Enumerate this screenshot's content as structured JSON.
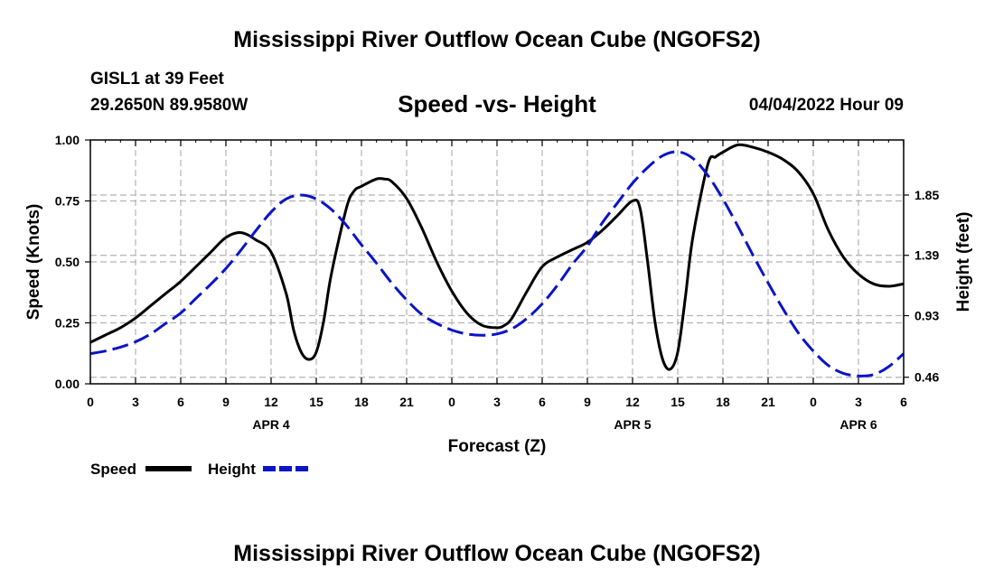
{
  "header": {
    "title": "Mississippi River Outflow Ocean Cube (NGOFS2)",
    "station": "GISL1 at 39 Feet",
    "coordinates": "29.2650N  89.9580W",
    "subtitle": "Speed -vs- Height",
    "datetime": "04/04/2022 Hour 09"
  },
  "footer": {
    "title": "Mississippi River Outflow Ocean Cube (NGOFS2)"
  },
  "chart_data": {
    "type": "line",
    "title": "Speed -vs- Height",
    "xlabel": "Forecast (Z)",
    "ylabel": "Speed (Knots)",
    "y2label": "Height (feet)",
    "x_range_hours": [
      0,
      54
    ],
    "x_tick_hours": [
      0,
      3,
      6,
      9,
      12,
      15,
      18,
      21,
      24,
      27,
      30,
      33,
      36,
      39,
      42,
      45,
      48,
      51,
      54
    ],
    "x_tick_labels": [
      "0",
      "3",
      "6",
      "9",
      "12",
      "15",
      "18",
      "21",
      "0",
      "3",
      "6",
      "9",
      "12",
      "15",
      "18",
      "21",
      "0",
      "3",
      "6"
    ],
    "date_labels": [
      {
        "label": "APR 4",
        "hour": 12
      },
      {
        "label": "APR 5",
        "hour": 36
      },
      {
        "label": "APR 6",
        "hour": 51
      }
    ],
    "ylim": [
      0,
      1
    ],
    "y_ticks": [
      0,
      0.25,
      0.5,
      0.75,
      1.0
    ],
    "y_tick_labels": [
      "0.00",
      "0.25",
      "0.50",
      "0.75",
      "1.00"
    ],
    "y2_ticks": [
      0.46,
      0.93,
      1.39,
      1.85
    ],
    "y2_tick_labels": [
      "0.46",
      "0.93",
      "1.39",
      "1.85"
    ],
    "y2_lim": [
      0.41,
      2.27
    ],
    "grid": true,
    "legend": {
      "placement": "bottom-left",
      "entries": [
        "Speed",
        "Height"
      ]
    },
    "series": [
      {
        "name": "Speed",
        "unit": "Knots",
        "axis": "left",
        "color": "#000000",
        "style": "solid",
        "x": [
          0,
          1,
          2,
          3,
          4,
          5,
          6,
          7,
          8,
          9,
          10,
          11,
          12,
          13,
          13.5,
          14,
          14.5,
          15,
          15.5,
          16,
          17,
          17.5,
          18,
          19,
          19.5,
          20,
          21,
          22,
          23,
          24,
          25,
          26,
          27,
          27.5,
          28,
          29,
          30,
          31,
          32,
          33,
          34,
          35,
          36,
          36.5,
          37,
          37.5,
          38,
          38.5,
          39,
          39.5,
          40,
          41,
          41.5,
          42,
          43,
          44,
          45,
          46,
          47,
          48,
          49,
          50,
          51,
          52,
          53,
          54
        ],
        "values": [
          0.17,
          0.2,
          0.23,
          0.27,
          0.32,
          0.37,
          0.42,
          0.48,
          0.54,
          0.6,
          0.62,
          0.59,
          0.54,
          0.37,
          0.22,
          0.13,
          0.1,
          0.13,
          0.26,
          0.45,
          0.72,
          0.79,
          0.81,
          0.84,
          0.84,
          0.83,
          0.76,
          0.64,
          0.5,
          0.38,
          0.29,
          0.24,
          0.23,
          0.24,
          0.27,
          0.38,
          0.48,
          0.52,
          0.55,
          0.58,
          0.63,
          0.69,
          0.75,
          0.72,
          0.5,
          0.25,
          0.1,
          0.06,
          0.13,
          0.35,
          0.6,
          0.9,
          0.93,
          0.95,
          0.98,
          0.97,
          0.95,
          0.92,
          0.87,
          0.78,
          0.63,
          0.52,
          0.45,
          0.41,
          0.4,
          0.41
        ]
      },
      {
        "name": "Height",
        "unit": "feet",
        "axis": "right",
        "color": "#0a14c8",
        "style": "dashed",
        "x": [
          0,
          1,
          2,
          3,
          4,
          5,
          6,
          7,
          8,
          9,
          10,
          11,
          12,
          13,
          14,
          15,
          16,
          17,
          18,
          19,
          20,
          21,
          22,
          23,
          24,
          25,
          26,
          27,
          28,
          29,
          30,
          31,
          32,
          33,
          34,
          35,
          36,
          37,
          38,
          39,
          40,
          41,
          42,
          43,
          44,
          45,
          46,
          47,
          48,
          49,
          50,
          51,
          52,
          53,
          54
        ],
        "values": [
          0.64,
          0.66,
          0.69,
          0.73,
          0.79,
          0.87,
          0.95,
          1.06,
          1.17,
          1.29,
          1.43,
          1.58,
          1.72,
          1.82,
          1.85,
          1.82,
          1.74,
          1.62,
          1.47,
          1.33,
          1.18,
          1.05,
          0.94,
          0.87,
          0.82,
          0.79,
          0.78,
          0.79,
          0.83,
          0.91,
          1.02,
          1.16,
          1.32,
          1.46,
          1.64,
          1.79,
          1.94,
          2.06,
          2.15,
          2.18,
          2.13,
          2.0,
          1.82,
          1.61,
          1.39,
          1.18,
          0.98,
          0.8,
          0.66,
          0.55,
          0.49,
          0.47,
          0.48,
          0.54,
          0.64
        ]
      }
    ]
  }
}
